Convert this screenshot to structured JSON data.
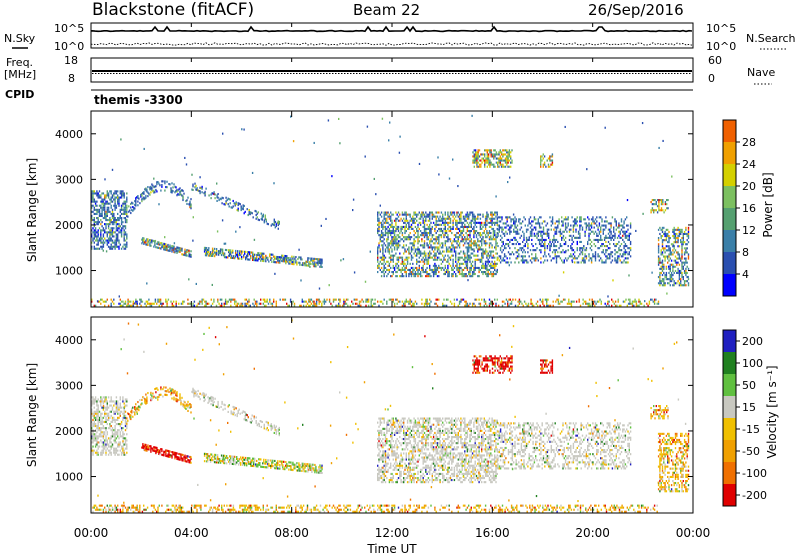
{
  "header": {
    "station": "Blackstone (fitACF)",
    "beam": "Beam 22",
    "date": "26/Sep/2016"
  },
  "side_labels": {
    "nsky": "N.Sky",
    "nsearch": "N.Search",
    "freq": "Freq.",
    "freq_unit": "[MHz]",
    "nave": "Nave",
    "cpid": "CPID",
    "cpid_value": "themis -3300"
  },
  "colors": {
    "power_scale": [
      "#0000ff",
      "#2a4fb0",
      "#3a7fa8",
      "#55a070",
      "#7cc060",
      "#d4d000",
      "#f0a000",
      "#f06000",
      "#e00000"
    ],
    "velocity_scale": [
      "#2020c0",
      "#208020",
      "#60c040",
      "#c8c8c0",
      "#f0c000",
      "#f0a000",
      "#f07000",
      "#e00000"
    ]
  },
  "chart_data": [
    {
      "type": "line",
      "name": "noise",
      "series": [
        {
          "name": "N.Sky",
          "style": "solid"
        },
        {
          "name": "N.Search",
          "style": "dotted"
        }
      ],
      "y_left_ticks": [
        "10^5",
        "10^0"
      ],
      "y_right_ticks": [
        "10^5",
        "10^0"
      ]
    },
    {
      "type": "line",
      "name": "frequency-nave",
      "series": [
        {
          "name": "Freq.",
          "style": "solid"
        },
        {
          "name": "Nave",
          "style": "dotted"
        }
      ],
      "y_left_ticks": [
        "18",
        "8"
      ],
      "y_right_ticks": [
        "60",
        "0"
      ]
    },
    {
      "type": "heatmap",
      "name": "power",
      "ylabel": "Slant Range [km]",
      "yticks": [
        "1000",
        "2000",
        "3000",
        "4000"
      ],
      "ylim": [
        200,
        4500
      ],
      "xlim": [
        0,
        24
      ],
      "colorbar_label": "Power [dB]",
      "colorbar_ticks": [
        "4",
        "8",
        "12",
        "16",
        "20",
        "24",
        "28"
      ],
      "colorbar_range": [
        0,
        32
      ]
    },
    {
      "type": "heatmap",
      "name": "velocity",
      "ylabel": "Slant Range [km]",
      "yticks": [
        "1000",
        "2000",
        "3000",
        "4000"
      ],
      "ylim": [
        200,
        4500
      ],
      "xlim": [
        0,
        24
      ],
      "colorbar_label": "Velocity [m s⁻¹]",
      "colorbar_ticks": [
        "200",
        "100",
        "50",
        "15",
        "-15",
        "-50",
        "-100",
        "-200"
      ],
      "xticks": [
        "00:00",
        "04:00",
        "08:00",
        "12:00",
        "16:00",
        "20:00",
        "00:00"
      ],
      "xlabel": "Time UT"
    }
  ]
}
